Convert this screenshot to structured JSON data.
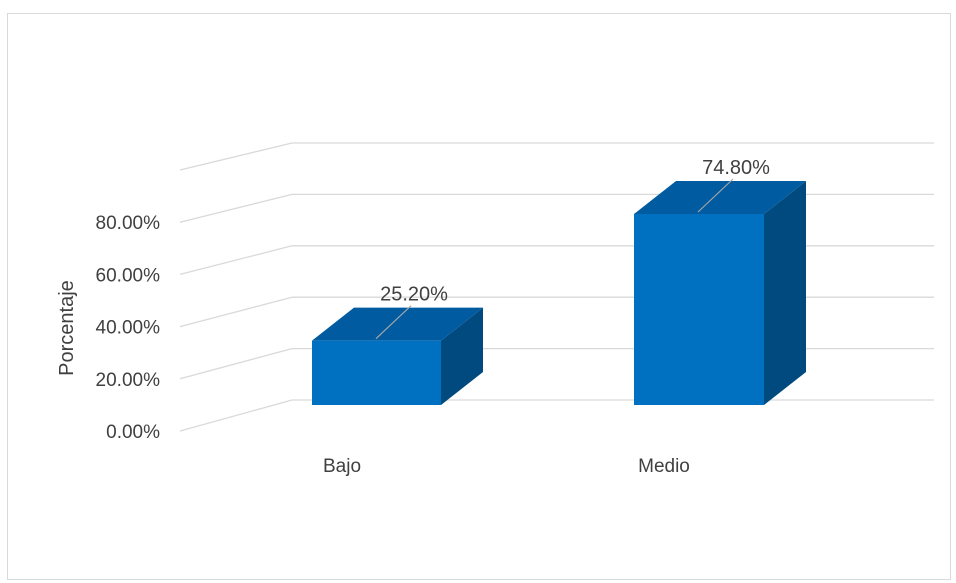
{
  "chart_data": {
    "type": "bar",
    "style": "3d-column",
    "categories": [
      "Bajo",
      "Medio"
    ],
    "series": [
      {
        "values": [
          25.2,
          74.8
        ],
        "data_labels": [
          "25.20%",
          "74.80%"
        ]
      }
    ],
    "ylabel": "Porcentaje",
    "xlabel": "",
    "title": "",
    "ylim": [
      0,
      100
    ],
    "yticks": [
      "0.00%",
      "20.00%",
      "40.00%",
      "60.00%",
      "80.00%"
    ],
    "ytick_values": [
      0,
      20,
      40,
      60,
      80
    ],
    "grid": true,
    "legend": false,
    "colors": {
      "front": "#0070c0",
      "top": "#005ba0",
      "side": "#004a80",
      "grid": "#d9d9d9",
      "text": "#404040",
      "leader": "#a6a6a6"
    }
  }
}
